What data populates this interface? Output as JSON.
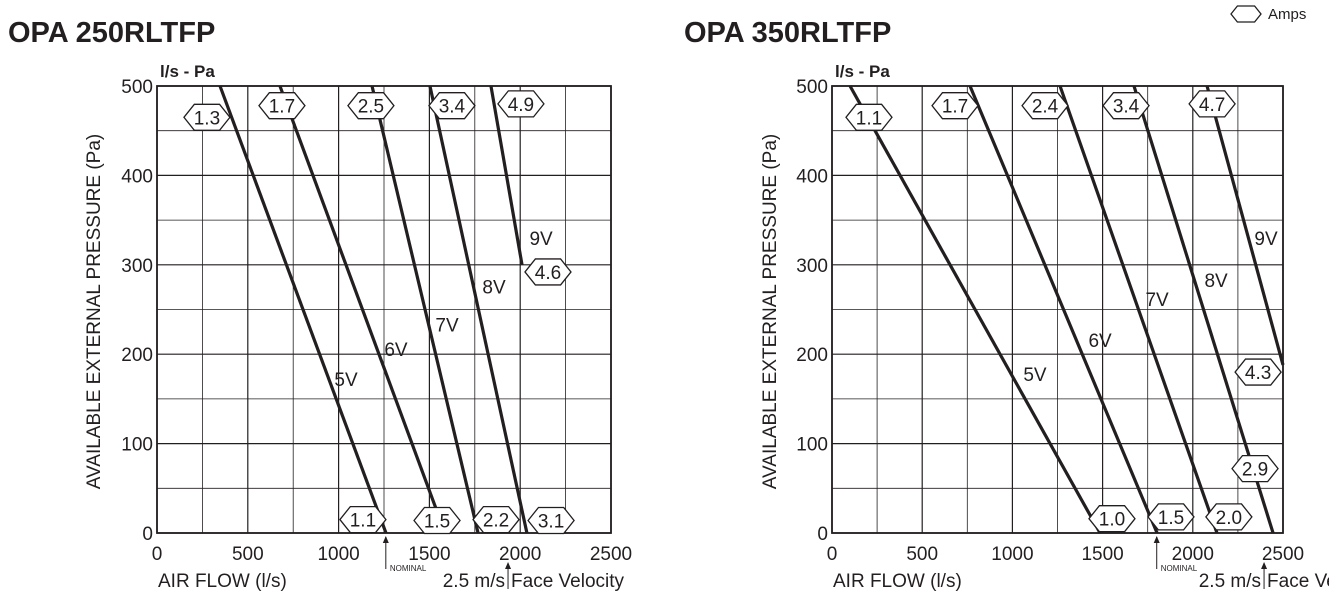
{
  "legend": {
    "symbol": "hexagon-icon",
    "label": "Amps"
  },
  "chart_data": [
    {
      "type": "line",
      "title": "OPA 250RLTFP",
      "unit_label": "l/s - Pa",
      "xlabel": "AIR FLOW (l/s)",
      "ylabel": "AVAILABLE EXTERNAL PRESSURE (Pa)",
      "xlim": [
        0,
        2500
      ],
      "ylim": [
        0,
        500
      ],
      "xticks": [
        0,
        500,
        1000,
        1500,
        2000,
        2500
      ],
      "yticks": [
        0,
        100,
        200,
        300,
        400,
        500
      ],
      "grid": true,
      "nominal": {
        "label": "NOMINAL",
        "x": 1260
      },
      "face_velocity": {
        "label": "2.5 m/s",
        "suffix": "Face Velocity",
        "x": 1933
      },
      "series": [
        {
          "name": "5V",
          "points": [
            [
              347,
              500
            ],
            [
              1261,
              0
            ]
          ],
          "label_at": [
            1041,
            172
          ]
        },
        {
          "name": "6V",
          "points": [
            [
              677,
              500
            ],
            [
              1586,
              0
            ]
          ],
          "label_at": [
            1316,
            206
          ]
        },
        {
          "name": "7V",
          "points": [
            [
              1184,
              500
            ],
            [
              1768,
              0
            ]
          ],
          "label_at": [
            1597,
            233
          ]
        },
        {
          "name": "8V",
          "points": [
            [
              1503,
              500
            ],
            [
              2037,
              0
            ]
          ],
          "label_at": [
            1856,
            276
          ]
        },
        {
          "name": "9V",
          "points": [
            [
              1839,
              500
            ],
            [
              2010,
              300
            ]
          ],
          "label_at": [
            2115,
            330
          ]
        }
      ],
      "amps": [
        {
          "value": "1.3",
          "at": [
            275,
            465
          ]
        },
        {
          "value": "1.7",
          "at": [
            688,
            478
          ]
        },
        {
          "value": "2.5",
          "at": [
            1178,
            478
          ]
        },
        {
          "value": "3.4",
          "at": [
            1624,
            478
          ]
        },
        {
          "value": "4.9",
          "at": [
            2004,
            480
          ]
        },
        {
          "value": "4.6",
          "at": [
            2153,
            292
          ]
        },
        {
          "value": "1.1",
          "at": [
            1134,
            15
          ]
        },
        {
          "value": "1.5",
          "at": [
            1542,
            14
          ]
        },
        {
          "value": "2.2",
          "at": [
            1867,
            15
          ]
        },
        {
          "value": "3.1",
          "at": [
            2170,
            14
          ]
        }
      ]
    },
    {
      "type": "line",
      "title": "OPA 350RLTFP",
      "unit_label": "l/s - Pa",
      "xlabel": "AIR FLOW (l/s)",
      "ylabel": "AVAILABLE EXTERNAL PRESSURE (Pa)",
      "xlim": [
        0,
        2500
      ],
      "ylim": [
        0,
        500
      ],
      "xticks": [
        0,
        500,
        1000,
        1500,
        2000,
        2500
      ],
      "yticks": [
        0,
        100,
        200,
        300,
        400,
        500
      ],
      "grid": true,
      "nominal": {
        "label": "NOMINAL",
        "x": 1800
      },
      "face_velocity": {
        "label": "2.5 m/s",
        "suffix": "Face Velocity",
        "x": 2395
      },
      "series": [
        {
          "name": "5V",
          "points": [
            [
              100,
              500
            ],
            [
              1486,
              0
            ]
          ],
          "label_at": [
            1125,
            178
          ]
        },
        {
          "name": "6V",
          "points": [
            [
              765,
              500
            ],
            [
              1802,
              0
            ]
          ],
          "label_at": [
            1486,
            216
          ]
        },
        {
          "name": "7V",
          "points": [
            [
              1264,
              500
            ],
            [
              2134,
              0
            ]
          ],
          "label_at": [
            1802,
            262
          ]
        },
        {
          "name": "8V",
          "points": [
            [
              1674,
              500
            ],
            [
              2445,
              0
            ]
          ],
          "label_at": [
            2129,
            283
          ]
        },
        {
          "name": "9V",
          "points": [
            [
              2079,
              500
            ],
            [
              2500,
              188
            ]
          ],
          "label_at": [
            2406,
            330
          ]
        }
      ],
      "amps": [
        {
          "value": "1.1",
          "at": [
            205,
            465
          ]
        },
        {
          "value": "1.7",
          "at": [
            682,
            478
          ]
        },
        {
          "value": "2.4",
          "at": [
            1181,
            478
          ]
        },
        {
          "value": "3.4",
          "at": [
            1630,
            478
          ]
        },
        {
          "value": "4.7",
          "at": [
            2107,
            480
          ]
        },
        {
          "value": "4.3",
          "at": [
            2362,
            180
          ]
        },
        {
          "value": "2.9",
          "at": [
            2345,
            72
          ]
        },
        {
          "value": "1.0",
          "at": [
            1552,
            16
          ]
        },
        {
          "value": "1.5",
          "at": [
            1879,
            18
          ]
        },
        {
          "value": "2.0",
          "at": [
            2200,
            18
          ]
        }
      ]
    }
  ]
}
